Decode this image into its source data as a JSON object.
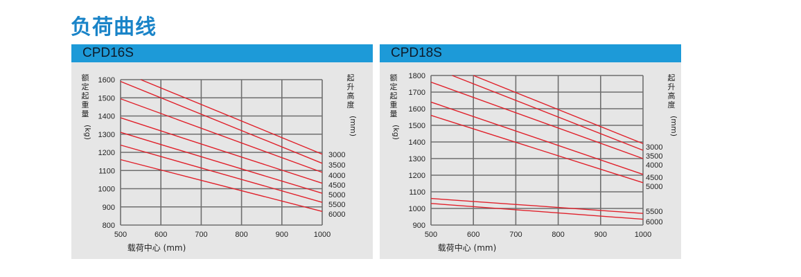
{
  "title": "负荷曲线",
  "chart_data": [
    {
      "type": "line",
      "title": "CPD16S",
      "xlabel": "载荷中心 (mm)",
      "ylabel_chars": [
        "额",
        "定",
        "起",
        "重",
        "量",
        "(kg)"
      ],
      "y2label_chars": [
        "起",
        "升",
        "高",
        "度",
        "(mm)"
      ],
      "xlim": [
        500,
        1000
      ],
      "ylim": [
        800,
        1600
      ],
      "x_ticks": [
        500,
        600,
        700,
        800,
        900,
        1000
      ],
      "y_ticks": [
        800,
        900,
        1000,
        1100,
        1200,
        1300,
        1400,
        1500,
        1600
      ],
      "grid": true,
      "line_color": "#e0202a",
      "series": [
        {
          "name": "3000",
          "points": [
            [
              550,
              1600
            ],
            [
              1000,
              1190
            ]
          ]
        },
        {
          "name": "3500",
          "points": [
            [
              500,
              1590
            ],
            [
              1000,
              1140
            ]
          ]
        },
        {
          "name": "4000",
          "points": [
            [
              500,
              1495
            ],
            [
              1000,
              1090
            ]
          ]
        },
        {
          "name": "4500",
          "points": [
            [
              500,
              1390
            ],
            [
              1000,
              1030
            ]
          ]
        },
        {
          "name": "5000",
          "points": [
            [
              500,
              1310
            ],
            [
              1000,
              975
            ]
          ]
        },
        {
          "name": "5500",
          "points": [
            [
              500,
              1240
            ],
            [
              1000,
              925
            ]
          ]
        },
        {
          "name": "6000",
          "points": [
            [
              500,
              1160
            ],
            [
              1000,
              875
            ]
          ]
        }
      ]
    },
    {
      "type": "line",
      "title": "CPD18S",
      "xlabel": "载荷中心 (mm)",
      "ylabel_chars": [
        "额",
        "定",
        "起",
        "重",
        "量",
        "(kg)"
      ],
      "y2label_chars": [
        "起",
        "升",
        "高",
        "度",
        "(mm)"
      ],
      "xlim": [
        500,
        1000
      ],
      "ylim": [
        900,
        1800
      ],
      "x_ticks": [
        500,
        600,
        700,
        800,
        900,
        1000
      ],
      "y_ticks": [
        900,
        1000,
        1100,
        1200,
        1300,
        1400,
        1500,
        1600,
        1700,
        1800
      ],
      "grid": true,
      "line_color": "#e0202a",
      "series": [
        {
          "name": "3000",
          "points": [
            [
              600,
              1800
            ],
            [
              1000,
              1390
            ]
          ]
        },
        {
          "name": "3500",
          "points": [
            [
              550,
              1800
            ],
            [
              1000,
              1350
            ]
          ]
        },
        {
          "name": "4000",
          "points": [
            [
              500,
              1760
            ],
            [
              1000,
              1300
            ]
          ]
        },
        {
          "name": "4500",
          "points": [
            [
              500,
              1640
            ],
            [
              1000,
              1205
            ]
          ]
        },
        {
          "name": "5000",
          "points": [
            [
              500,
              1560
            ],
            [
              1000,
              1155
            ]
          ]
        },
        {
          "name": "5500",
          "points": [
            [
              500,
              1060
            ],
            [
              1000,
              970
            ]
          ]
        },
        {
          "name": "6000",
          "points": [
            [
              500,
              1030
            ],
            [
              1000,
              935
            ]
          ]
        }
      ]
    }
  ]
}
